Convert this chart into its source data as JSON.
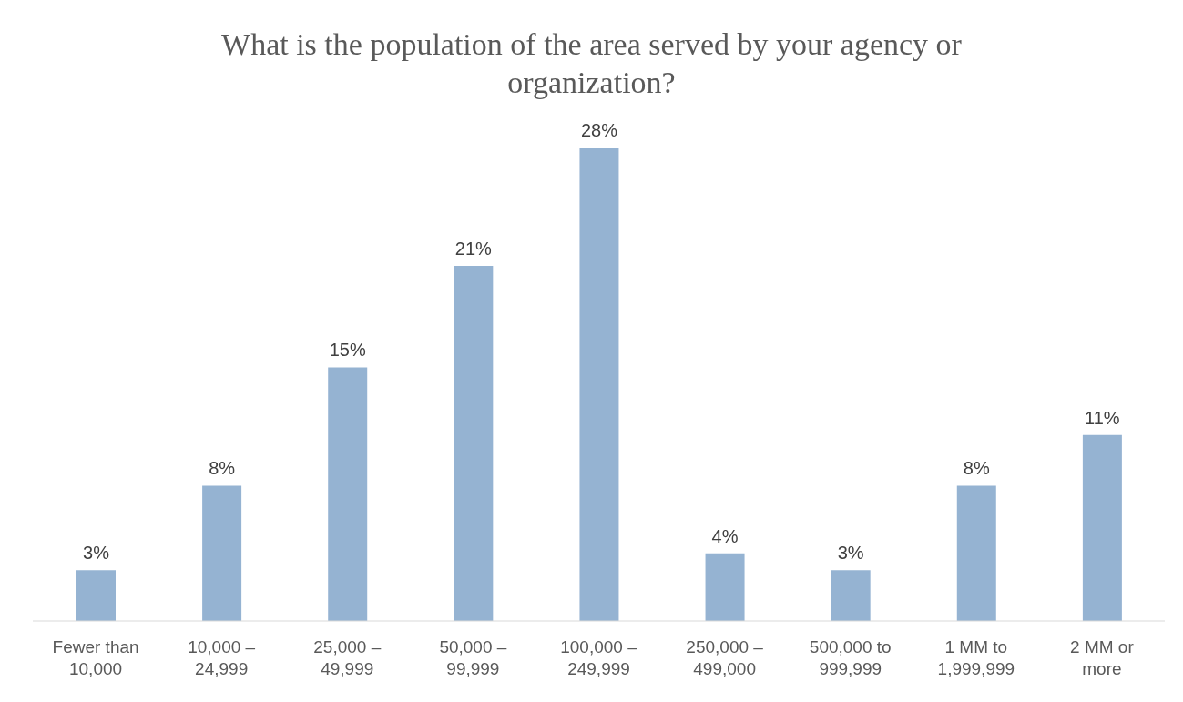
{
  "chart_data": {
    "type": "bar",
    "title": "What is the population of the area served by your agency or organization?",
    "categories": [
      "Fewer than 10,000",
      "10,000 – 24,999",
      "25,000 – 49,999",
      "50,000 – 99,999",
      "100,000 – 249,999",
      "250,000 – 499,000",
      "500,000 to 999,999",
      "1 MM to 1,999,999",
      "2 MM or more"
    ],
    "values": [
      3,
      8,
      15,
      21,
      28,
      4,
      3,
      8,
      11
    ],
    "value_labels": [
      "3%",
      "8%",
      "15%",
      "21%",
      "28%",
      "4%",
      "3%",
      "8%",
      "11%"
    ],
    "color": "#95b3d2",
    "grid": false,
    "legend": false
  }
}
